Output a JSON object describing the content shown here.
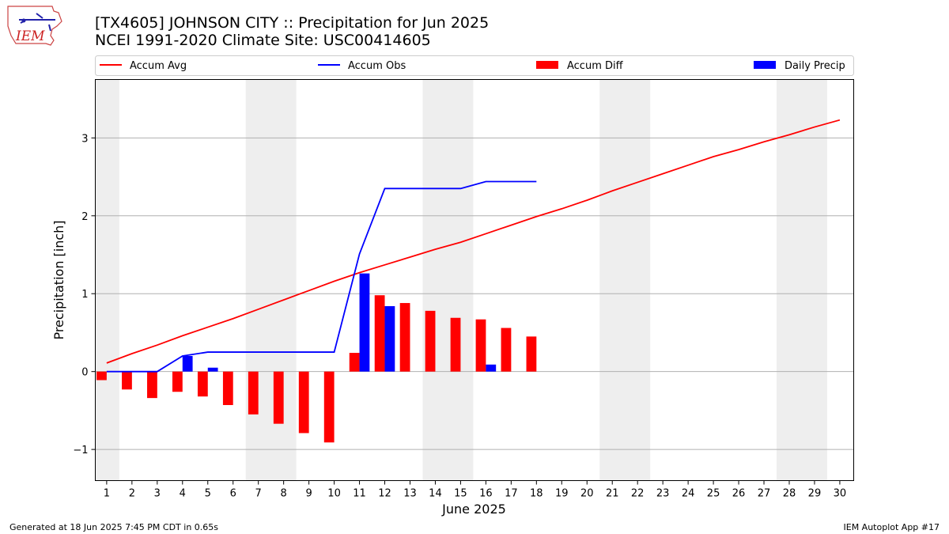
{
  "header": {
    "title_line1": "[TX4605] JOHNSON CITY :: Precipitation for Jun 2025",
    "title_line2": "NCEI 1991-2020 Climate Site: USC00414605",
    "logo_text": "IEM"
  },
  "footer": {
    "generated": "Generated at 18 Jun 2025 7:45 PM CDT in 0.65s",
    "app": "IEM Autoplot App #17"
  },
  "colors": {
    "accum_avg": "#ff0000",
    "accum_obs": "#0000ff",
    "accum_diff": "#ff0000",
    "daily_precip": "#0000ff",
    "weekend_shade": "#eeeeee",
    "grid": "#b0b0b0"
  },
  "chart_data": {
    "type": "bar",
    "xlabel": "June 2025",
    "ylabel": "Precipitation [inch]",
    "ylim": [
      -1.4,
      3.75
    ],
    "xlim": [
      0.55,
      30.55
    ],
    "yticks": [
      -1,
      0,
      1,
      2,
      3
    ],
    "ytick_labels": [
      "−1",
      "0",
      "1",
      "2",
      "3"
    ],
    "xticks": [
      "1",
      "2",
      "3",
      "4",
      "5",
      "6",
      "7",
      "8",
      "9",
      "10",
      "11",
      "12",
      "13",
      "14",
      "15",
      "16",
      "17",
      "18",
      "19",
      "20",
      "21",
      "22",
      "23",
      "24",
      "25",
      "26",
      "27",
      "28",
      "29",
      "30"
    ],
    "grid": "horizontal",
    "legend_placement": "top",
    "weekend_spans": [
      [
        0.55,
        1.5
      ],
      [
        6.5,
        8.5
      ],
      [
        13.5,
        15.5
      ],
      [
        20.5,
        22.5
      ],
      [
        27.5,
        29.5
      ]
    ],
    "legend": [
      "Accum Avg",
      "Accum Obs",
      "Accum Diff",
      "Daily Precip"
    ],
    "series": [
      {
        "name": "Accum Avg",
        "kind": "line",
        "x": [
          1,
          2,
          3,
          4,
          5,
          6,
          7,
          8,
          9,
          10,
          11,
          12,
          13,
          14,
          15,
          16,
          17,
          18,
          19,
          20,
          21,
          22,
          23,
          24,
          25,
          26,
          27,
          28,
          29,
          30
        ],
        "values": [
          0.11,
          0.23,
          0.34,
          0.46,
          0.57,
          0.68,
          0.8,
          0.92,
          1.04,
          1.16,
          1.27,
          1.37,
          1.47,
          1.57,
          1.66,
          1.77,
          1.88,
          1.99,
          2.09,
          2.2,
          2.32,
          2.43,
          2.54,
          2.65,
          2.76,
          2.85,
          2.95,
          3.04,
          3.14,
          3.23
        ]
      },
      {
        "name": "Accum Obs",
        "kind": "line",
        "x": [
          1,
          2,
          3,
          4,
          5,
          6,
          7,
          8,
          9,
          10,
          11,
          12,
          13,
          14,
          15,
          16,
          17,
          18
        ],
        "values": [
          0,
          0,
          0,
          0.2,
          0.25,
          0.25,
          0.25,
          0.25,
          0.25,
          0.25,
          1.51,
          2.35,
          2.35,
          2.35,
          2.35,
          2.44,
          2.44,
          2.44
        ]
      },
      {
        "name": "Accum Diff",
        "kind": "bar",
        "x": [
          1,
          2,
          3,
          4,
          5,
          6,
          7,
          8,
          9,
          10,
          11,
          12,
          13,
          14,
          15,
          16,
          17,
          18
        ],
        "values": [
          -0.11,
          -0.23,
          -0.34,
          -0.26,
          -0.32,
          -0.43,
          -0.55,
          -0.67,
          -0.79,
          -0.91,
          0.24,
          0.98,
          0.88,
          0.78,
          0.69,
          0.67,
          0.56,
          0.45
        ]
      },
      {
        "name": "Daily Precip",
        "kind": "bar",
        "x": [
          4,
          5,
          11,
          12,
          16
        ],
        "values": [
          0.2,
          0.05,
          1.26,
          0.84,
          0.09
        ]
      }
    ]
  }
}
